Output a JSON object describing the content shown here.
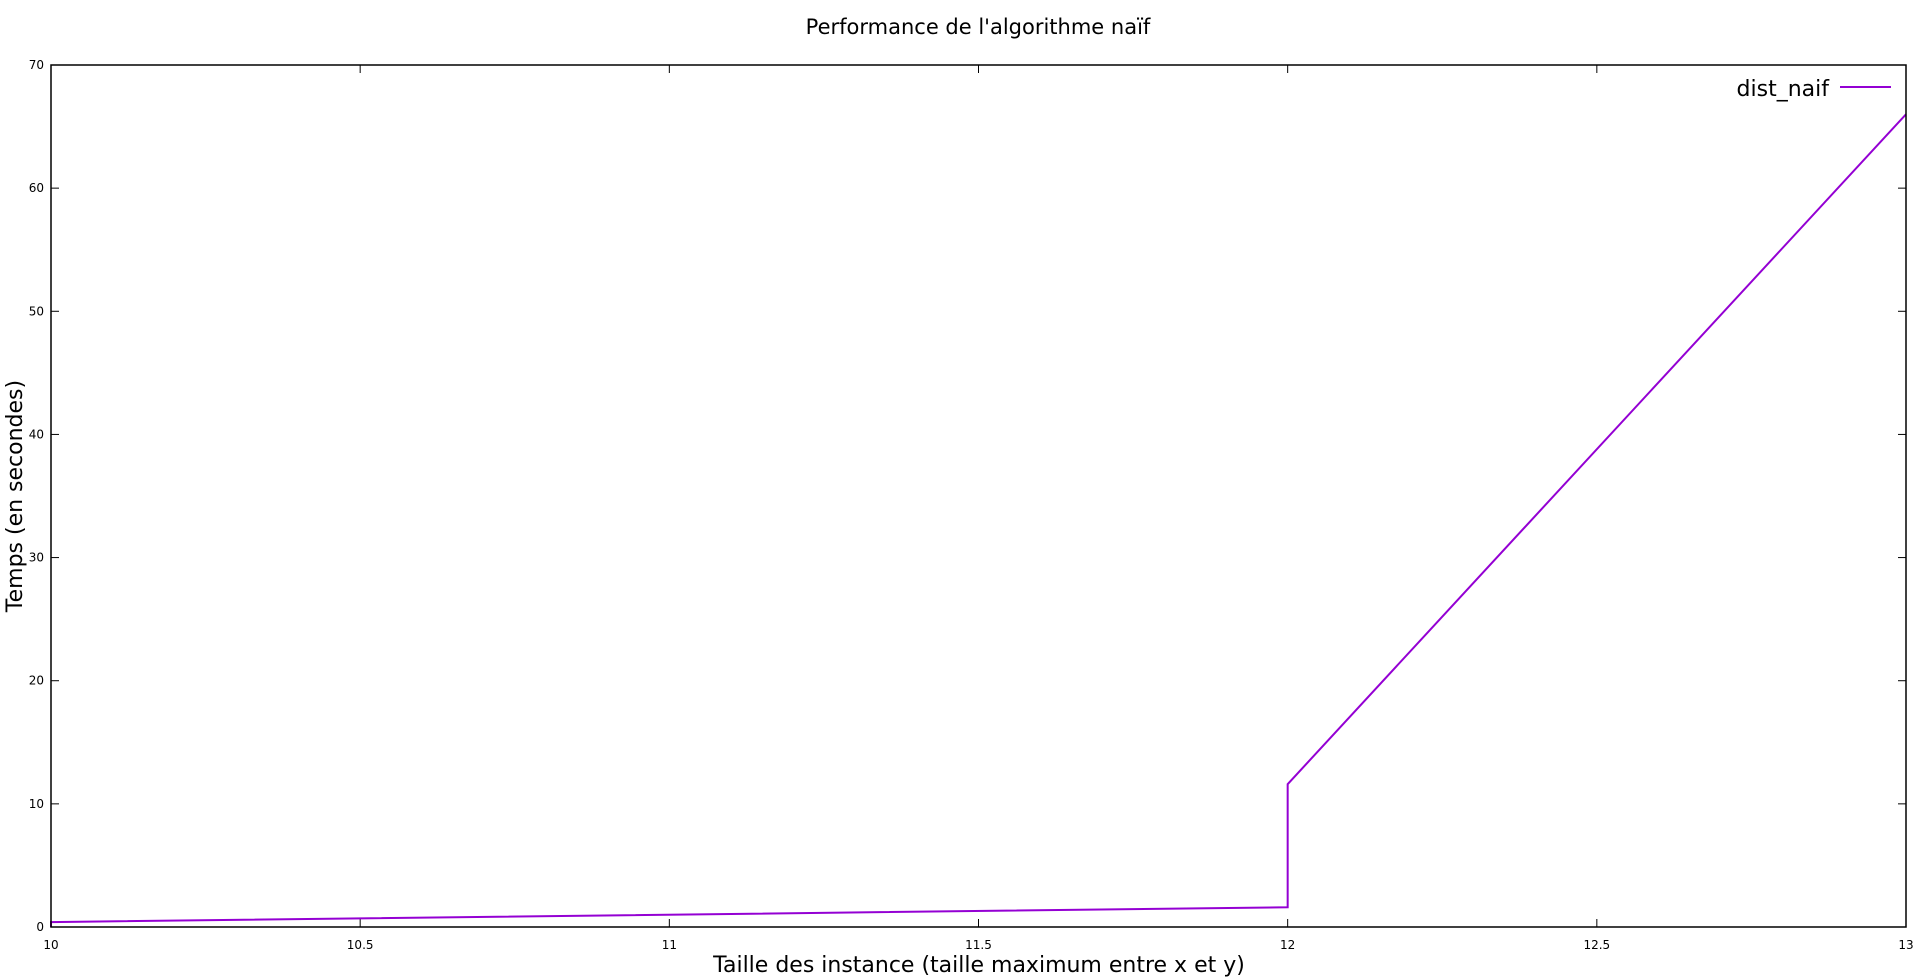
{
  "chart_data": {
    "type": "line",
    "title": "Performance de l'algorithme naïf",
    "xlabel": "Taille des instance (taille maximum entre x et y)",
    "ylabel": "Temps (en secondes)",
    "xlim": [
      10,
      13
    ],
    "ylim": [
      0,
      70
    ],
    "x_ticks": [
      10,
      10.5,
      11,
      11.5,
      12,
      12.5,
      13
    ],
    "x_tick_labels": [
      "10",
      "10.5",
      "11",
      "11.5",
      "12",
      "12.5",
      "13"
    ],
    "y_ticks": [
      0,
      10,
      20,
      30,
      40,
      50,
      60,
      70
    ],
    "y_tick_labels": [
      "0",
      "10",
      "20",
      "30",
      "40",
      "50",
      "60",
      "70"
    ],
    "grid": false,
    "legend_position": "top-right",
    "series": [
      {
        "name": "dist_naif",
        "color": "#9400d3",
        "x": [
          10,
          10,
          12,
          12,
          13
        ],
        "y": [
          0.0,
          0.4,
          1.6,
          11.6,
          66.0
        ]
      }
    ]
  }
}
